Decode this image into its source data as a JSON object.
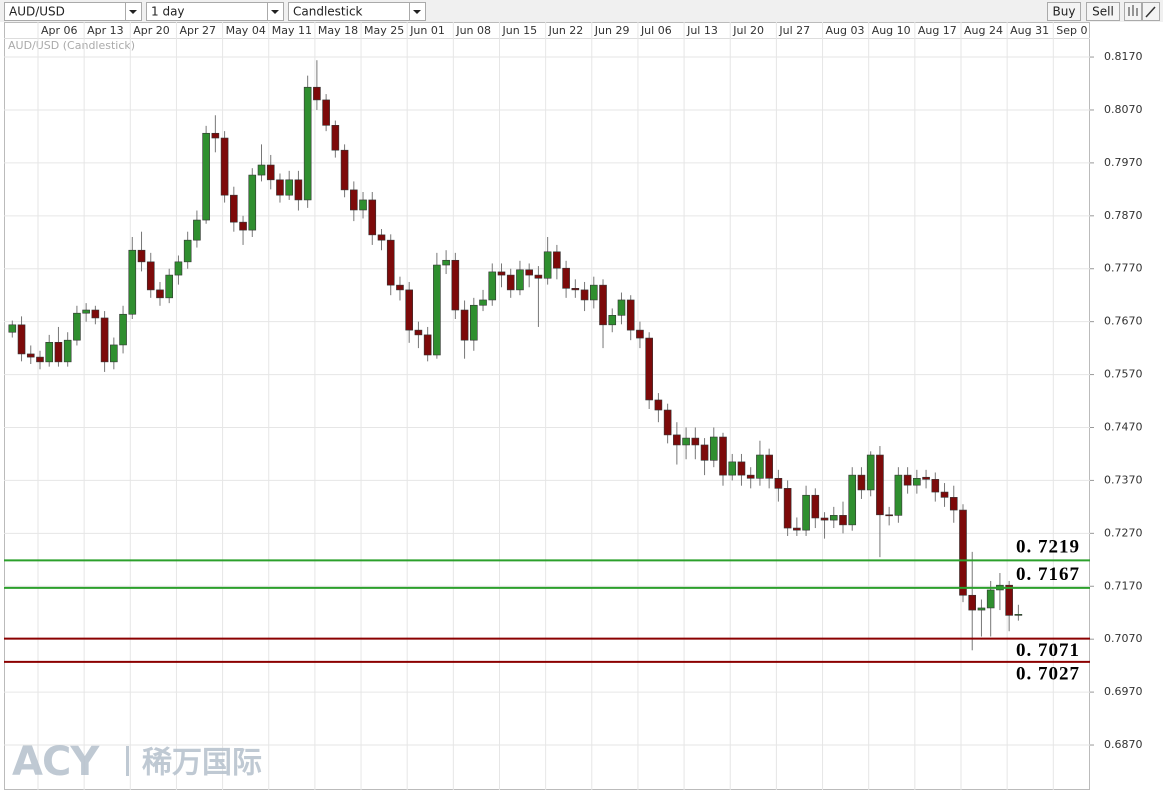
{
  "toolbar": {
    "symbol": "AUD/USD",
    "interval": "1 day",
    "style": "Candlestick",
    "buy": "Buy",
    "sell": "Sell"
  },
  "watermark": {
    "brand": "ACY",
    "name": "稀万国际"
  },
  "chart_data": {
    "type": "candlestick",
    "title": "AUD/USD (Candlestick)",
    "categories": [
      null,
      null,
      null,
      "Apr 06",
      null,
      null,
      null,
      null,
      "Apr 13",
      null,
      null,
      null,
      null,
      "Apr 20",
      null,
      null,
      null,
      null,
      "Apr 27",
      null,
      null,
      null,
      null,
      "May 04",
      null,
      null,
      null,
      null,
      "May 11",
      null,
      null,
      null,
      null,
      "May 18",
      null,
      null,
      null,
      null,
      "May 25",
      null,
      null,
      null,
      null,
      "Jun 01",
      null,
      null,
      null,
      null,
      "Jun 08",
      null,
      null,
      null,
      null,
      "Jun 15",
      null,
      null,
      null,
      null,
      "Jun 22",
      null,
      null,
      null,
      null,
      "Jun 29",
      null,
      null,
      null,
      null,
      "Jul 06",
      null,
      null,
      null,
      null,
      "Jul 13",
      null,
      null,
      null,
      null,
      "Jul 20",
      null,
      null,
      null,
      null,
      "Jul 27",
      null,
      null,
      null,
      null,
      "Aug 03",
      null,
      null,
      null,
      null,
      "Aug 10",
      null,
      null,
      null,
      null,
      "Aug 17",
      null,
      null,
      null,
      null,
      "Aug 24",
      null,
      null,
      null,
      null,
      "Aug 31",
      null,
      null,
      null,
      null,
      "Sep 0"
    ],
    "open": [
      0.765,
      0.7664,
      0.7609,
      0.7603,
      0.7594,
      0.7631,
      0.7594,
      0.7635,
      0.7686,
      0.7692,
      0.7677,
      0.7594,
      0.7626,
      0.7684,
      0.7805,
      0.7783,
      0.773,
      0.7715,
      0.7758,
      0.7783,
      0.7824,
      0.7862,
      0.8026,
      0.8017,
      0.7909,
      0.7858,
      0.7843,
      0.7947,
      0.7966,
      0.7938,
      0.7909,
      0.7938,
      0.79,
      0.8113,
      0.8089,
      0.8041,
      0.7994,
      0.7919,
      0.7881,
      0.79,
      0.7834,
      0.7824,
      0.7739,
      0.773,
      0.7654,
      0.7645,
      0.7607,
      0.7777,
      0.7786,
      0.7692,
      0.7635,
      0.7701,
      0.7711,
      0.7764,
      0.7758,
      0.773,
      0.7768,
      0.7758,
      0.7752,
      0.7802,
      0.7771,
      0.7733,
      0.773,
      0.7711,
      0.7739,
      0.7664,
      0.7682,
      0.7711,
      0.7654,
      0.7639,
      0.7522,
      0.7503,
      0.7456,
      0.7437,
      0.745,
      0.7437,
      0.7408,
      0.7452,
      0.738,
      0.7405,
      0.738,
      0.7374,
      0.7418,
      0.7374,
      0.7355,
      0.728,
      0.7276,
      0.7342,
      0.7299,
      0.7295,
      0.7304,
      0.7286,
      0.738,
      0.7352,
      0.7418,
      0.7305,
      0.7304,
      0.738,
      0.7361,
      0.7376,
      0.7372,
      0.7348,
      0.7338,
      0.7314,
      0.7153,
      0.7125,
      0.7129,
      0.7163,
      0.7172,
      0.7115,
      null,
      null,
      null,
      null
    ],
    "high": [
      0.7672,
      0.768,
      0.7625,
      0.7615,
      0.7645,
      0.766,
      0.765,
      0.77,
      0.7705,
      0.77,
      0.769,
      0.764,
      0.77,
      0.783,
      0.784,
      0.78,
      0.7745,
      0.777,
      0.7795,
      0.784,
      0.788,
      0.804,
      0.806,
      0.803,
      0.7925,
      0.787,
      0.796,
      0.8005,
      0.7985,
      0.795,
      0.7955,
      0.7955,
      0.8135,
      0.8164,
      0.81,
      0.805,
      0.8005,
      0.7935,
      0.7915,
      0.7915,
      0.7845,
      0.7835,
      0.7755,
      0.7745,
      0.767,
      0.766,
      0.78,
      0.7805,
      0.78,
      0.771,
      0.7715,
      0.773,
      0.778,
      0.778,
      0.777,
      0.7785,
      0.778,
      0.7775,
      0.783,
      0.7815,
      0.7785,
      0.775,
      0.7745,
      0.7755,
      0.775,
      0.7695,
      0.7725,
      0.772,
      0.767,
      0.765,
      0.7535,
      0.7515,
      0.748,
      0.747,
      0.747,
      0.745,
      0.747,
      0.746,
      0.742,
      0.742,
      0.7395,
      0.7445,
      0.743,
      0.739,
      0.737,
      0.73,
      0.736,
      0.7355,
      0.731,
      0.732,
      0.733,
      0.7395,
      0.7395,
      0.7425,
      0.7435,
      0.732,
      0.7395,
      0.7395,
      0.739,
      0.739,
      0.7385,
      0.7365,
      0.736,
      0.7325,
      0.7235,
      0.7145,
      0.718,
      0.7195,
      0.718,
      0.7135,
      null,
      null,
      null,
      null
    ],
    "low": [
      0.764,
      0.7595,
      0.759,
      0.758,
      0.7585,
      0.7585,
      0.7585,
      0.7625,
      0.767,
      0.7665,
      0.7575,
      0.758,
      0.761,
      0.7675,
      0.7765,
      0.7715,
      0.77,
      0.7705,
      0.774,
      0.777,
      0.781,
      0.7855,
      0.799,
      0.7895,
      0.784,
      0.7815,
      0.783,
      0.7935,
      0.792,
      0.7895,
      0.79,
      0.788,
      0.7885,
      0.807,
      0.803,
      0.798,
      0.7905,
      0.786,
      0.7865,
      0.7815,
      0.7805,
      0.772,
      0.771,
      0.763,
      0.762,
      0.7595,
      0.76,
      0.776,
      0.7675,
      0.76,
      0.7615,
      0.769,
      0.77,
      0.7735,
      0.7715,
      0.772,
      0.7735,
      0.766,
      0.774,
      0.775,
      0.7715,
      0.7715,
      0.769,
      0.7695,
      0.762,
      0.765,
      0.7665,
      0.7635,
      0.762,
      0.7505,
      0.748,
      0.744,
      0.74,
      0.741,
      0.741,
      0.738,
      0.7395,
      0.736,
      0.737,
      0.736,
      0.7355,
      0.736,
      0.7355,
      0.733,
      0.7265,
      0.7265,
      0.7265,
      0.728,
      0.726,
      0.728,
      0.727,
      0.7275,
      0.7335,
      0.734,
      0.7225,
      0.7285,
      0.729,
      0.7345,
      0.7345,
      0.7355,
      0.733,
      0.732,
      0.729,
      0.714,
      0.7049,
      0.7075,
      0.7075,
      0.7125,
      0.7085,
      0.7105,
      null,
      null,
      null,
      null
    ],
    "close": [
      0.7664,
      0.7609,
      0.7603,
      0.7594,
      0.7631,
      0.7594,
      0.7635,
      0.7686,
      0.7692,
      0.7677,
      0.7594,
      0.7626,
      0.7684,
      0.7805,
      0.7783,
      0.773,
      0.7715,
      0.7758,
      0.7783,
      0.7824,
      0.7862,
      0.8026,
      0.8017,
      0.7909,
      0.7858,
      0.7843,
      0.7947,
      0.7966,
      0.7938,
      0.7909,
      0.7938,
      0.79,
      0.8113,
      0.8089,
      0.8041,
      0.7994,
      0.7919,
      0.7881,
      0.79,
      0.7834,
      0.7824,
      0.7739,
      0.773,
      0.7654,
      0.7645,
      0.7607,
      0.7777,
      0.7786,
      0.7692,
      0.7635,
      0.7701,
      0.7711,
      0.7764,
      0.7758,
      0.773,
      0.7768,
      0.7758,
      0.7752,
      0.7802,
      0.7771,
      0.7733,
      0.773,
      0.7711,
      0.7739,
      0.7664,
      0.7682,
      0.7711,
      0.7654,
      0.7639,
      0.7522,
      0.7503,
      0.7456,
      0.7437,
      0.745,
      0.7437,
      0.7408,
      0.7452,
      0.738,
      0.7405,
      0.738,
      0.7374,
      0.7418,
      0.7374,
      0.7355,
      0.728,
      0.7276,
      0.7342,
      0.7299,
      0.7295,
      0.7304,
      0.7286,
      0.738,
      0.7352,
      0.7418,
      0.7305,
      0.7304,
      0.738,
      0.7361,
      0.7374,
      0.7372,
      0.7348,
      0.7338,
      0.7314,
      0.7153,
      0.7125,
      0.7129,
      0.7163,
      0.7172,
      0.7115,
      0.7117,
      null,
      null,
      null,
      null
    ],
    "up_color": "#2f8f2f",
    "down_color": "#7d0a0a",
    "ylim": [
      0.6785,
      0.8206
    ],
    "yticks": [
      {
        "value": 0.817,
        "label": "0.8170"
      },
      {
        "value": 0.807,
        "label": "0.8070"
      },
      {
        "value": 0.797,
        "label": "0.7970"
      },
      {
        "value": 0.787,
        "label": "0.7870"
      },
      {
        "value": 0.777,
        "label": "0.7770"
      },
      {
        "value": 0.767,
        "label": "0.7670"
      },
      {
        "value": 0.757,
        "label": "0.7570"
      },
      {
        "value": 0.747,
        "label": "0.7470"
      },
      {
        "value": 0.737,
        "label": "0.7370"
      },
      {
        "value": 0.727,
        "label": "0.7270"
      },
      {
        "value": 0.717,
        "label": "0.7170"
      },
      {
        "value": 0.707,
        "label": "0.7070"
      },
      {
        "value": 0.697,
        "label": "0.6970"
      },
      {
        "value": 0.687,
        "label": "0.6870"
      }
    ],
    "grid": true,
    "hlines": [
      {
        "value": 0.7219,
        "label": "0. 7219",
        "color": "#2ca02c"
      },
      {
        "value": 0.7167,
        "label": "0. 7167",
        "color": "#2ca02c"
      },
      {
        "value": 0.7071,
        "label": "0. 7071",
        "color": "#8b0000"
      },
      {
        "value": 0.7027,
        "label": "0. 7027",
        "color": "#8b0000"
      }
    ]
  }
}
